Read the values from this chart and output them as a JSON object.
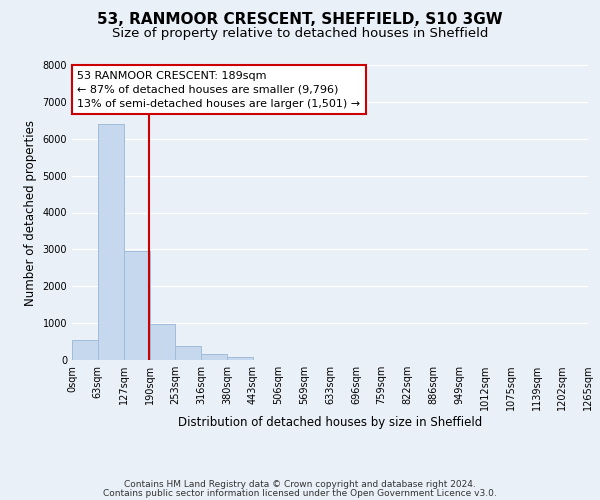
{
  "title": "53, RANMOOR CRESCENT, SHEFFIELD, S10 3GW",
  "subtitle": "Size of property relative to detached houses in Sheffield",
  "xlabel": "Distribution of detached houses by size in Sheffield",
  "ylabel": "Number of detached properties",
  "bar_values": [
    550,
    6400,
    2950,
    980,
    390,
    175,
    80,
    0,
    0,
    0,
    0,
    0,
    0,
    0,
    0,
    0,
    0,
    0,
    0,
    0
  ],
  "bar_edges": [
    0,
    63,
    127,
    190,
    253,
    316,
    380,
    443,
    506,
    569,
    633,
    696,
    759,
    822,
    886,
    949,
    1012,
    1075,
    1139,
    1202,
    1265
  ],
  "tick_labels": [
    "0sqm",
    "63sqm",
    "127sqm",
    "190sqm",
    "253sqm",
    "316sqm",
    "380sqm",
    "443sqm",
    "506sqm",
    "569sqm",
    "633sqm",
    "696sqm",
    "759sqm",
    "822sqm",
    "886sqm",
    "949sqm",
    "1012sqm",
    "1075sqm",
    "1139sqm",
    "1202sqm",
    "1265sqm"
  ],
  "bar_color": "#c5d8ed",
  "bar_edgecolor": "#a0bcd8",
  "vline_x": 189,
  "vline_color": "#cc0000",
  "annotation_line1": "53 RANMOOR CRESCENT: 189sqm",
  "annotation_line2": "← 87% of detached houses are smaller (9,796)",
  "annotation_line3": "13% of semi-detached houses are larger (1,501) →",
  "ylim": [
    0,
    8000
  ],
  "yticks": [
    0,
    1000,
    2000,
    3000,
    4000,
    5000,
    6000,
    7000,
    8000
  ],
  "footnote1": "Contains HM Land Registry data © Crown copyright and database right 2024.",
  "footnote2": "Contains public sector information licensed under the Open Government Licence v3.0.",
  "bg_color": "#eaf0f8",
  "plot_bg_color": "#eaf0f8",
  "title_fontsize": 11,
  "subtitle_fontsize": 9.5,
  "axis_label_fontsize": 8.5,
  "tick_fontsize": 7,
  "annotation_fontsize": 8,
  "footnote_fontsize": 6.5
}
